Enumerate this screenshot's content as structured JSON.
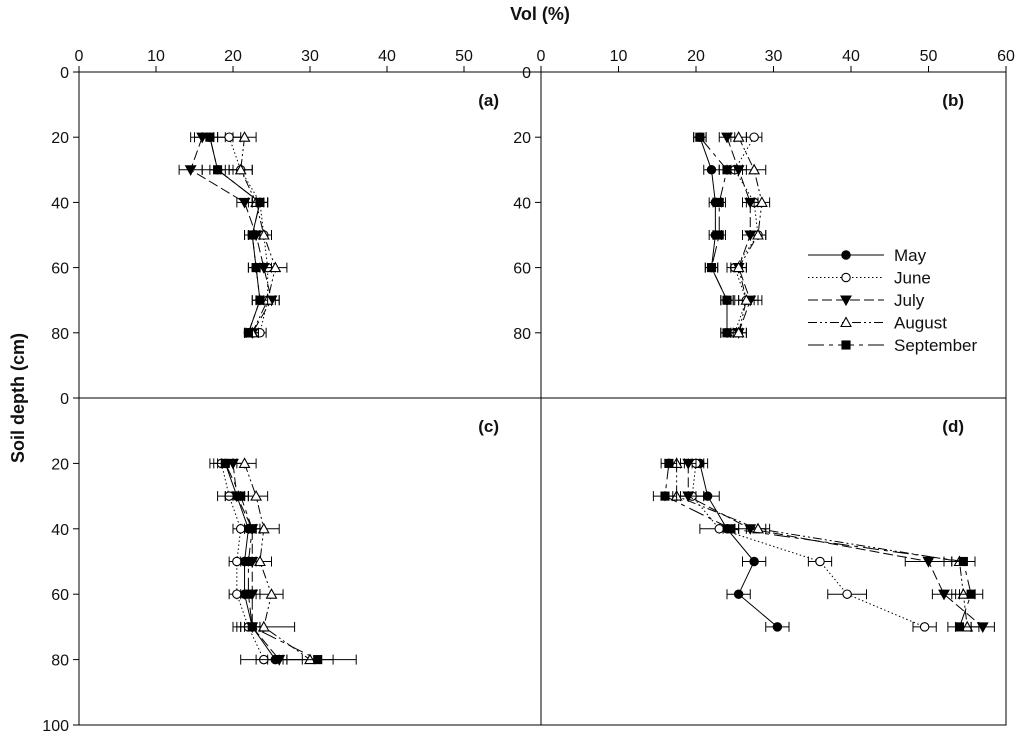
{
  "figure": {
    "x_title": "Vol (%)",
    "y_title": "Soil depth (cm)"
  },
  "legend": {
    "entries": [
      "May",
      "June",
      "July",
      "August",
      "September"
    ]
  },
  "chart_data": [
    {
      "type": "line",
      "panel": "(a)",
      "xlabel": "Vol (%)",
      "ylabel": "Soil depth (cm)",
      "xlim": [
        0,
        60
      ],
      "ylim": [
        0,
        100
      ],
      "x_ticks": [
        0,
        10,
        20,
        30,
        40,
        50
      ],
      "y_ticks": [
        0,
        20,
        40,
        60,
        80
      ],
      "series": [
        {
          "name": "May",
          "depth": [
            20,
            30,
            40,
            50,
            60,
            70,
            80
          ],
          "values": [
            17.0,
            18.0,
            23.5,
            22.5,
            23.0,
            23.5,
            22.0
          ],
          "err": [
            2.0,
            2.0,
            1.0,
            1.0,
            1.0,
            1.0,
            0.5
          ]
        },
        {
          "name": "June",
          "depth": [
            20,
            30,
            40,
            50,
            60,
            70,
            80
          ],
          "values": [
            19.5,
            21.0,
            23.5,
            24.0,
            24.5,
            24.5,
            23.5
          ],
          "err": [
            1.5,
            1.5,
            1.0,
            1.0,
            1.0,
            1.0,
            0.8
          ]
        },
        {
          "name": "July",
          "depth": [
            20,
            30,
            40,
            50,
            60,
            70,
            80
          ],
          "values": [
            16.0,
            14.5,
            21.5,
            23.0,
            24.0,
            25.0,
            22.5
          ],
          "err": [
            1.5,
            1.5,
            1.0,
            1.0,
            1.0,
            1.0,
            0.8
          ]
        },
        {
          "name": "August",
          "depth": [
            20,
            30,
            40,
            50,
            60,
            70,
            80
          ],
          "values": [
            21.5,
            21.0,
            23.0,
            24.0,
            25.5,
            24.5,
            22.5
          ],
          "err": [
            1.5,
            1.5,
            1.0,
            1.0,
            1.5,
            1.5,
            0.8
          ]
        },
        {
          "name": "September",
          "depth": [
            20,
            30,
            40,
            50,
            60,
            70,
            80
          ],
          "values": [
            17.0,
            18.0,
            23.5,
            22.5,
            23.0,
            23.5,
            22.0
          ],
          "err": [
            1.0,
            1.0,
            1.0,
            1.0,
            1.0,
            1.0,
            0.5
          ]
        }
      ]
    },
    {
      "type": "line",
      "panel": "(b)",
      "xlabel": "Vol (%)",
      "ylabel": "Soil depth (cm)",
      "xlim": [
        0,
        60
      ],
      "ylim": [
        0,
        100
      ],
      "x_ticks": [
        0,
        10,
        20,
        30,
        40,
        50,
        60
      ],
      "y_ticks": [
        0,
        20,
        40,
        60,
        80
      ],
      "series": [
        {
          "name": "May",
          "depth": [
            20,
            30,
            40,
            50,
            60,
            70,
            80
          ],
          "values": [
            20.5,
            22.0,
            22.5,
            22.5,
            22.0,
            24.0,
            24.0
          ],
          "err": [
            0.8,
            1.0,
            0.8,
            0.8,
            0.8,
            0.8,
            0.8
          ]
        },
        {
          "name": "June",
          "depth": [
            20,
            30,
            40,
            50,
            60,
            70,
            80
          ],
          "values": [
            27.5,
            25.0,
            27.5,
            28.0,
            25.0,
            26.5,
            25.0
          ],
          "err": [
            1.0,
            1.0,
            1.0,
            1.0,
            1.0,
            1.0,
            1.0
          ]
        },
        {
          "name": "July",
          "depth": [
            20,
            30,
            40,
            50,
            60,
            70,
            80
          ],
          "values": [
            24.0,
            25.5,
            27.0,
            27.0,
            25.5,
            27.0,
            25.5
          ],
          "err": [
            1.0,
            1.0,
            1.0,
            1.0,
            1.0,
            1.5,
            1.0
          ]
        },
        {
          "name": "August",
          "depth": [
            20,
            30,
            40,
            50,
            60,
            70,
            80
          ],
          "values": [
            25.5,
            27.5,
            28.5,
            28.0,
            25.5,
            26.5,
            25.5
          ],
          "err": [
            1.0,
            1.5,
            1.0,
            1.0,
            1.0,
            1.5,
            1.0
          ]
        },
        {
          "name": "September",
          "depth": [
            20,
            30,
            40,
            50,
            60,
            70,
            80
          ],
          "values": [
            20.5,
            24.0,
            23.0,
            23.0,
            22.0,
            24.0,
            24.0
          ],
          "err": [
            0.8,
            1.0,
            0.8,
            0.8,
            0.8,
            0.8,
            0.8
          ]
        }
      ]
    },
    {
      "type": "line",
      "panel": "(c)",
      "xlabel": "Vol (%)",
      "ylabel": "Soil depth (cm)",
      "xlim": [
        0,
        60
      ],
      "ylim": [
        0,
        100
      ],
      "x_ticks": [],
      "y_ticks": [
        0,
        20,
        40,
        60,
        80,
        100
      ],
      "series": [
        {
          "name": "May",
          "depth": [
            20,
            30,
            40,
            50,
            60,
            70,
            80
          ],
          "values": [
            19.0,
            20.5,
            22.0,
            21.5,
            21.5,
            22.5,
            25.5
          ],
          "err": [
            1.5,
            1.5,
            1.0,
            1.0,
            1.0,
            1.5,
            1.0
          ]
        },
        {
          "name": "June",
          "depth": [
            20,
            30,
            40,
            50,
            60,
            70,
            80
          ],
          "values": [
            18.5,
            19.5,
            21.0,
            20.5,
            20.5,
            22.0,
            24.0
          ],
          "err": [
            1.5,
            1.5,
            1.0,
            1.0,
            1.0,
            1.5,
            3.0
          ]
        },
        {
          "name": "July",
          "depth": [
            20,
            30,
            40,
            50,
            60,
            70,
            80
          ],
          "values": [
            20.0,
            20.5,
            22.5,
            22.5,
            22.5,
            22.5,
            26.0
          ],
          "err": [
            1.5,
            1.5,
            1.0,
            1.0,
            1.0,
            1.5,
            3.0
          ]
        },
        {
          "name": "August",
          "depth": [
            20,
            30,
            40,
            50,
            60,
            70,
            80
          ],
          "values": [
            21.5,
            23.0,
            24.0,
            23.5,
            25.0,
            24.0,
            30.0
          ],
          "err": [
            1.5,
            1.5,
            2.0,
            1.5,
            1.5,
            4.0,
            3.0
          ]
        },
        {
          "name": "September",
          "depth": [
            20,
            30,
            40,
            50,
            60,
            70,
            80
          ],
          "values": [
            19.0,
            21.0,
            22.5,
            22.0,
            22.0,
            22.5,
            31.0
          ],
          "err": [
            1.0,
            1.0,
            1.0,
            1.0,
            1.0,
            1.0,
            5.0
          ]
        }
      ]
    },
    {
      "type": "line",
      "panel": "(d)",
      "xlabel": "Vol (%)",
      "ylabel": "Soil depth (cm)",
      "xlim": [
        0,
        60
      ],
      "ylim": [
        0,
        100
      ],
      "x_ticks": [],
      "y_ticks": [],
      "series": [
        {
          "name": "May",
          "depth": [
            20,
            30,
            40,
            50,
            60,
            70
          ],
          "values": [
            20.5,
            21.5,
            24.0,
            27.5,
            25.5,
            30.5
          ],
          "err": [
            1.0,
            1.5,
            1.0,
            1.5,
            1.5,
            1.5
          ]
        },
        {
          "name": "June",
          "depth": [
            20,
            30,
            40,
            50,
            60,
            70
          ],
          "values": [
            20.0,
            19.5,
            23.0,
            36.0,
            39.5,
            49.5
          ],
          "err": [
            1.0,
            1.5,
            2.5,
            1.5,
            2.5,
            1.5
          ]
        },
        {
          "name": "July",
          "depth": [
            20,
            30,
            40,
            50,
            60,
            70
          ],
          "values": [
            19.0,
            19.0,
            27.0,
            50.0,
            52.0,
            57.0
          ],
          "err": [
            1.0,
            2.0,
            2.0,
            3.0,
            1.5,
            1.5
          ]
        },
        {
          "name": "August",
          "depth": [
            20,
            30,
            40,
            50,
            60,
            70
          ],
          "values": [
            17.5,
            17.5,
            28.0,
            54.0,
            54.5,
            55.0
          ],
          "err": [
            1.0,
            1.5,
            1.5,
            2.0,
            1.5,
            1.5
          ]
        },
        {
          "name": "September",
          "depth": [
            20,
            30,
            40,
            50,
            60,
            70
          ],
          "values": [
            16.5,
            16.0,
            24.5,
            54.5,
            55.5,
            54.0
          ],
          "err": [
            1.0,
            1.5,
            1.0,
            1.5,
            1.5,
            1.5
          ]
        }
      ]
    }
  ]
}
